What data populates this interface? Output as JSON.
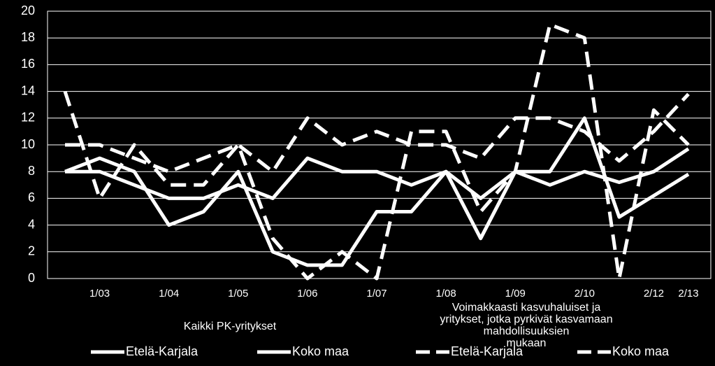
{
  "chart_data": {
    "type": "line",
    "ylim": [
      0,
      20
    ],
    "yticks": [
      0,
      2,
      4,
      6,
      8,
      10,
      12,
      14,
      16,
      18,
      20
    ],
    "grid": true,
    "legend_placement": "bottom",
    "x_tick_labels": [
      "1/03",
      "1/04",
      "1/05",
      "1/06",
      "1/07",
      "1/08",
      "1/09",
      "2/10",
      "2/12",
      "2/13"
    ],
    "group_labels": [
      {
        "lines": [
          "Kaikki PK-yritykset"
        ]
      },
      {
        "lines": [
          "Voimakkaasti kasvuhaluiset ja",
          "yritykset, jotka pyrkivät kasvamaan",
          "mahdollisuuksien",
          "mukaan"
        ]
      }
    ],
    "x": [
      "",
      "1/03",
      "",
      "1/04",
      "",
      "1/05",
      "",
      "1/06",
      "",
      "1/07",
      "",
      "1/08",
      "",
      "1/09",
      "",
      "2/10",
      "",
      "2/12",
      "2/13"
    ],
    "series": [
      {
        "name": "Etelä-Karjala",
        "style": "solid",
        "values": [
          8,
          9,
          8,
          4,
          5,
          8,
          2,
          1,
          1,
          5,
          5,
          8,
          3,
          8,
          8,
          12,
          4.6,
          6.2,
          7.8
        ]
      },
      {
        "name": "Koko maa",
        "style": "solid",
        "values": [
          8,
          8,
          7,
          6,
          6,
          7,
          6,
          9,
          8,
          8,
          7,
          8,
          6,
          8,
          7,
          8,
          7.2,
          8,
          9.7
        ]
      },
      {
        "name": "Etelä-Karjala",
        "style": "dashed",
        "values": [
          14,
          6,
          10,
          7,
          7,
          10,
          3,
          0,
          2,
          0,
          11,
          11,
          5,
          8,
          19,
          18,
          0,
          12.6,
          10
        ]
      },
      {
        "name": "Koko maa",
        "style": "dashed",
        "values": [
          10,
          10,
          9,
          8,
          9,
          10,
          8,
          12,
          10,
          11,
          10,
          10,
          9,
          12,
          12,
          11,
          8.8,
          11,
          13.8
        ]
      }
    ],
    "colors": {
      "background": "#000000",
      "line": "#ffffff",
      "grid": "#ffffff"
    }
  }
}
